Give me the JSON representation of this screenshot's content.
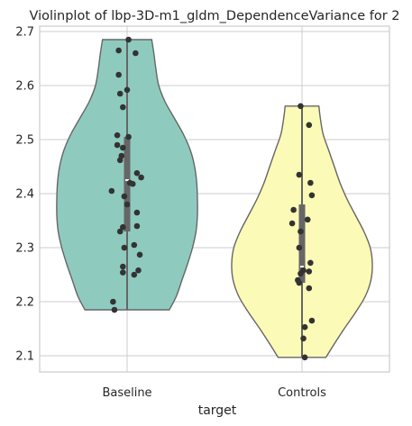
{
  "chart_data": {
    "type": "violin",
    "title": "Violinplot of lbp-3D-m1_gldm_DependenceVariance for 2",
    "xlabel": "target",
    "ylabel": "",
    "categories": [
      "Baseline",
      "Controls"
    ],
    "ylim": [
      2.07,
      2.71
    ],
    "yticks": [
      2.1,
      2.2,
      2.3,
      2.4,
      2.5,
      2.6,
      2.7
    ],
    "ytick_labels": [
      "2.1",
      "2.2",
      "2.3",
      "2.4",
      "2.5",
      "2.6",
      "2.7"
    ],
    "grid": true,
    "colors": {
      "Baseline": "#8ecbbe",
      "Controls": "#fbfab6",
      "outline": "#666666",
      "points": "#333333",
      "grid": "#cccccc"
    },
    "violins": [
      {
        "category": "Baseline",
        "min": 2.185,
        "max": 2.685,
        "q1": 2.33,
        "median": 2.425,
        "q3": 2.505,
        "profile": [
          [
            2.185,
            0.6
          ],
          [
            2.21,
            0.7
          ],
          [
            2.24,
            0.78
          ],
          [
            2.27,
            0.86
          ],
          [
            2.3,
            0.93
          ],
          [
            2.33,
            0.98
          ],
          [
            2.36,
            1.0
          ],
          [
            2.39,
            1.0
          ],
          [
            2.42,
            0.99
          ],
          [
            2.45,
            0.96
          ],
          [
            2.48,
            0.9
          ],
          [
            2.51,
            0.8
          ],
          [
            2.54,
            0.67
          ],
          [
            2.57,
            0.54
          ],
          [
            2.6,
            0.45
          ],
          [
            2.63,
            0.41
          ],
          [
            2.66,
            0.38
          ],
          [
            2.685,
            0.35
          ]
        ],
        "points": [
          [
            0.02,
            2.685
          ],
          [
            -0.12,
            2.665
          ],
          [
            0.12,
            2.66
          ],
          [
            -0.12,
            2.62
          ],
          [
            -0.1,
            2.585
          ],
          [
            0.0,
            2.592
          ],
          [
            -0.06,
            2.56
          ],
          [
            -0.14,
            2.508
          ],
          [
            0.02,
            2.505
          ],
          [
            -0.14,
            2.49
          ],
          [
            -0.06,
            2.485
          ],
          [
            -0.08,
            2.47
          ],
          [
            -0.1,
            2.462
          ],
          [
            0.14,
            2.438
          ],
          [
            0.2,
            2.43
          ],
          [
            0.04,
            2.42
          ],
          [
            0.08,
            2.418
          ],
          [
            -0.22,
            2.405
          ],
          [
            -0.04,
            2.395
          ],
          [
            0.0,
            2.38
          ],
          [
            0.14,
            2.365
          ],
          [
            -0.06,
            2.338
          ],
          [
            0.14,
            2.34
          ],
          [
            -0.1,
            2.33
          ],
          [
            0.1,
            2.305
          ],
          [
            -0.04,
            2.3
          ],
          [
            0.18,
            2.287
          ],
          [
            -0.06,
            2.265
          ],
          [
            0.16,
            2.258
          ],
          [
            0.1,
            2.25
          ],
          [
            -0.06,
            2.254
          ],
          [
            -0.2,
            2.2
          ],
          [
            -0.18,
            2.185
          ]
        ]
      },
      {
        "category": "Controls",
        "min": 2.097,
        "max": 2.562,
        "q1": 2.235,
        "median": 2.265,
        "q3": 2.38,
        "profile": [
          [
            2.097,
            0.34
          ],
          [
            2.12,
            0.45
          ],
          [
            2.15,
            0.6
          ],
          [
            2.18,
            0.76
          ],
          [
            2.21,
            0.9
          ],
          [
            2.24,
            0.98
          ],
          [
            2.27,
            1.0
          ],
          [
            2.3,
            0.97
          ],
          [
            2.33,
            0.88
          ],
          [
            2.36,
            0.76
          ],
          [
            2.39,
            0.64
          ],
          [
            2.42,
            0.54
          ],
          [
            2.45,
            0.46
          ],
          [
            2.48,
            0.38
          ],
          [
            2.51,
            0.3
          ],
          [
            2.54,
            0.26
          ],
          [
            2.562,
            0.24
          ]
        ],
        "points": [
          [
            -0.02,
            2.562
          ],
          [
            0.1,
            2.527
          ],
          [
            -0.04,
            2.435
          ],
          [
            0.12,
            2.42
          ],
          [
            0.14,
            2.397
          ],
          [
            -0.12,
            2.37
          ],
          [
            0.08,
            2.352
          ],
          [
            -0.14,
            2.345
          ],
          [
            -0.02,
            2.33
          ],
          [
            -0.04,
            2.3
          ],
          [
            0.12,
            2.272
          ],
          [
            0.02,
            2.258
          ],
          [
            0.1,
            2.256
          ],
          [
            -0.02,
            2.252
          ],
          [
            -0.06,
            2.24
          ],
          [
            -0.04,
            2.235
          ],
          [
            0.1,
            2.225
          ],
          [
            0.14,
            2.165
          ],
          [
            0.04,
            2.153
          ],
          [
            0.02,
            2.132
          ],
          [
            0.04,
            2.097
          ]
        ]
      }
    ]
  }
}
